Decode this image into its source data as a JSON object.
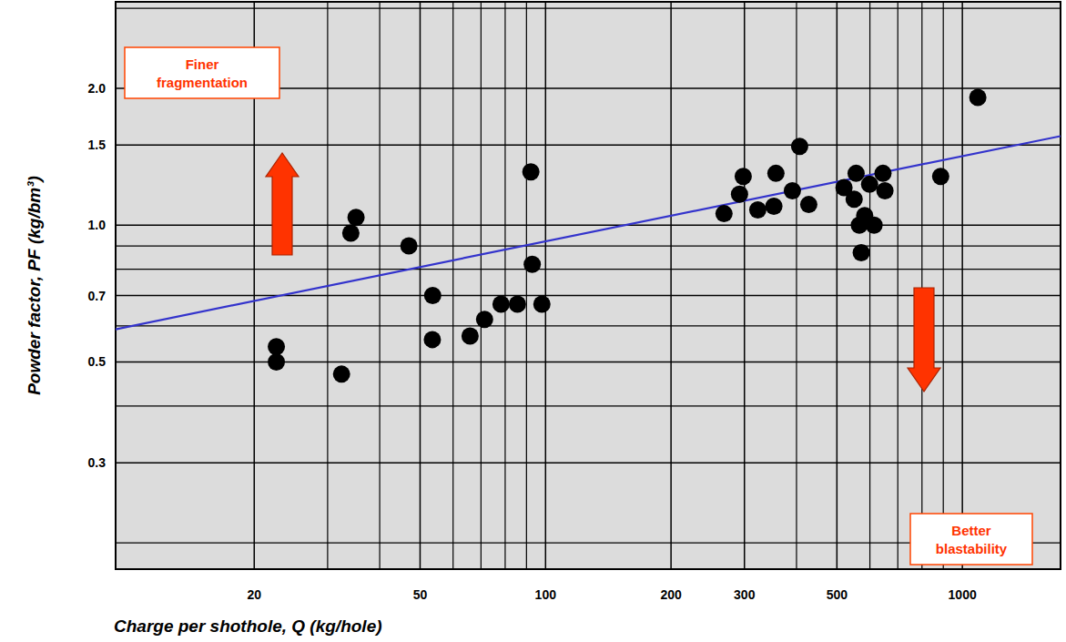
{
  "chart_data": {
    "type": "scatter",
    "x_label": "Charge per shothole, Q (kg/hole)",
    "y_label": "Powder factor, PF (kg/bm³)",
    "log": true,
    "grid": true,
    "color": "#000000",
    "marker": "circle",
    "xlim": [
      9.3,
      1720
    ],
    "ylim": [
      0.175,
      3.1
    ],
    "xticks": [
      20,
      50,
      100,
      200,
      300,
      500,
      1000
    ],
    "yticks": [
      0.3,
      0.5,
      0.7,
      {
        "value": 1,
        "label": "1.0"
      },
      1.5,
      {
        "value": 2,
        "label": "2.0"
      }
    ],
    "x_minor_grid": [
      30,
      40,
      60,
      70,
      80,
      90,
      400,
      600,
      700,
      800,
      900
    ],
    "y_minor_grid": [
      0.2,
      0.4,
      0.6,
      0.8,
      0.9,
      3
    ],
    "x": [
      22.6,
      22.6,
      32.4,
      34.1,
      35.1,
      47,
      53.6,
      53.5,
      65.9,
      71.4,
      78.2,
      85.6,
      92.2,
      92.9,
      98,
      268,
      292,
      298,
      323,
      353,
      357,
      391,
      407,
      428,
      520,
      556,
      550,
      599,
      583,
      566,
      572,
      614,
      645,
      652,
      887,
      1089
    ],
    "values": [
      0.54,
      0.5,
      0.47,
      0.96,
      1.04,
      0.9,
      0.7,
      0.56,
      0.57,
      0.62,
      0.67,
      0.67,
      1.31,
      0.82,
      0.67,
      1.06,
      1.17,
      1.28,
      1.08,
      1.1,
      1.3,
      1.19,
      1.49,
      1.11,
      1.21,
      1.3,
      1.14,
      1.23,
      1.05,
      1.0,
      0.87,
      1.0,
      1.3,
      1.19,
      1.28,
      1.91
    ],
    "trend_line": {
      "x": [
        9.3,
        1720
      ],
      "values": [
        0.59,
        1.57
      ],
      "color": "#3333cc"
    },
    "annotations": [
      {
        "text": "Finer fragmentation"
      },
      {
        "text": "Better blastability"
      }
    ]
  }
}
